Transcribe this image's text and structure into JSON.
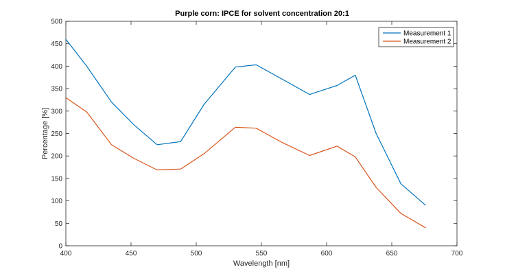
{
  "chart_data": {
    "type": "line",
    "title": "Purple corn: IPCE for solvent concentration 20:1",
    "xlabel": "Wavelength [nm]",
    "ylabel": "Percentage [%]",
    "xlim": [
      400,
      700
    ],
    "ylim": [
      0,
      500
    ],
    "xticks": [
      400,
      450,
      500,
      550,
      600,
      650,
      700
    ],
    "yticks": [
      0,
      50,
      100,
      150,
      200,
      250,
      300,
      350,
      400,
      450,
      500
    ],
    "grid": false,
    "legend_position": "top-right",
    "series": [
      {
        "name": "Measurement 1",
        "color": "#0072BD",
        "x": [
          400,
          416,
          435,
          452,
          470,
          488,
          506,
          530,
          546,
          566,
          587,
          608,
          622,
          638,
          657,
          676
        ],
        "y": [
          460,
          400,
          320,
          270,
          225,
          232,
          315,
          398,
          403,
          371,
          337,
          357,
          380,
          250,
          138,
          90
        ]
      },
      {
        "name": "Measurement 2",
        "color": "#D95319",
        "x": [
          400,
          416,
          435,
          452,
          470,
          488,
          506,
          530,
          546,
          566,
          587,
          608,
          622,
          638,
          657,
          676
        ],
        "y": [
          330,
          298,
          225,
          195,
          169,
          171,
          205,
          264,
          262,
          230,
          201,
          222,
          198,
          130,
          72,
          40
        ]
      }
    ]
  }
}
